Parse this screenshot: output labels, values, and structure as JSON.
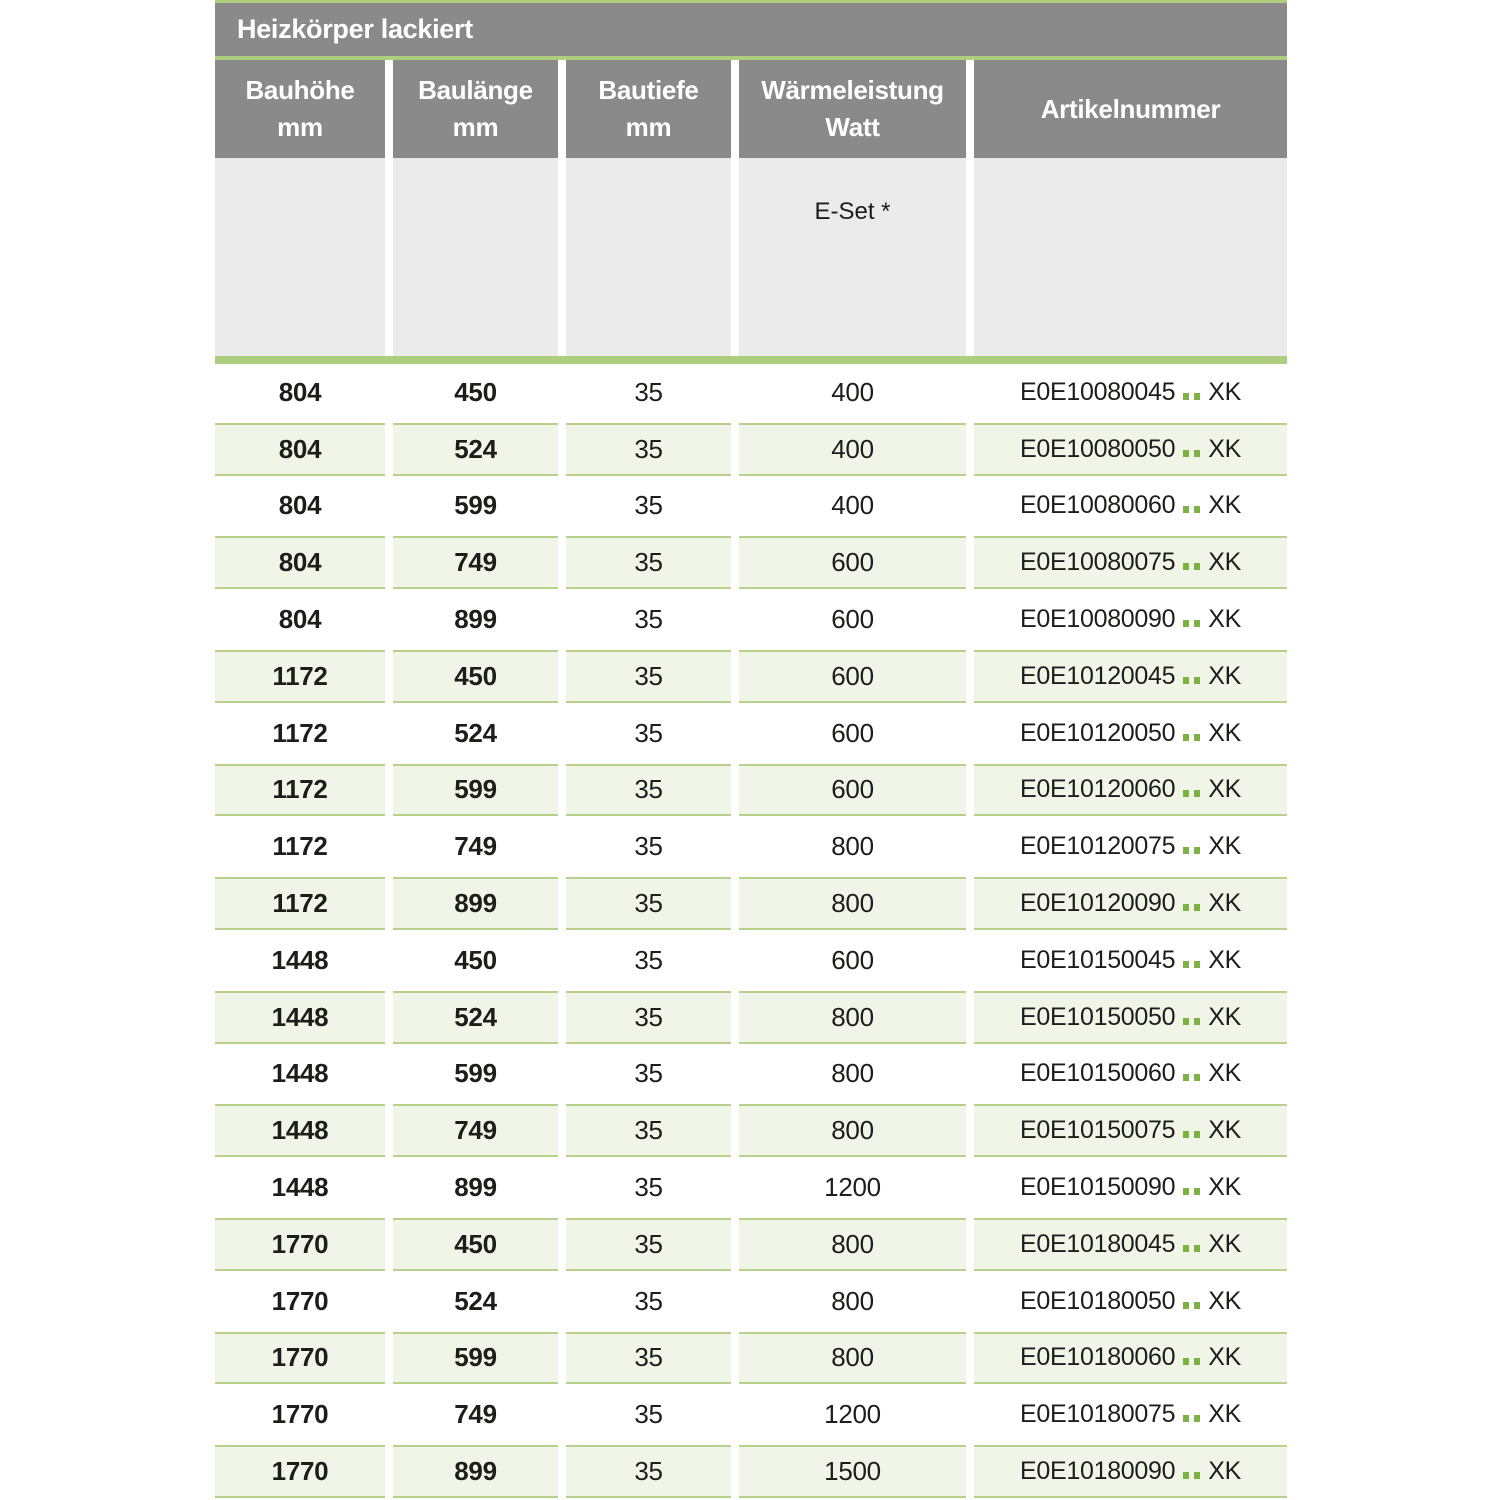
{
  "table": {
    "title": "Heizkörper lackiert",
    "columns": [
      {
        "label_line1": "Bauhöhe",
        "label_line2": "mm"
      },
      {
        "label_line1": "Baulänge",
        "label_line2": "mm"
      },
      {
        "label_line1": "Bautiefe",
        "label_line2": "mm"
      },
      {
        "label_line1": "Wärmeleistung",
        "label_line2": "Watt"
      },
      {
        "label_line1": "Artikelnummer",
        "label_line2": ""
      }
    ],
    "subheader": {
      "eset_label": "E-Set *"
    },
    "artikel_wildcard": "..",
    "rows": [
      {
        "bauhoehe": "804",
        "baulaenge": "450",
        "bautiefe": "35",
        "waermeleistung": "400",
        "artikel_prefix": "E0E10080045",
        "artikel_suffix": "XK"
      },
      {
        "bauhoehe": "804",
        "baulaenge": "524",
        "bautiefe": "35",
        "waermeleistung": "400",
        "artikel_prefix": "E0E10080050",
        "artikel_suffix": "XK"
      },
      {
        "bauhoehe": "804",
        "baulaenge": "599",
        "bautiefe": "35",
        "waermeleistung": "400",
        "artikel_prefix": "E0E10080060",
        "artikel_suffix": "XK"
      },
      {
        "bauhoehe": "804",
        "baulaenge": "749",
        "bautiefe": "35",
        "waermeleistung": "600",
        "artikel_prefix": "E0E10080075",
        "artikel_suffix": "XK"
      },
      {
        "bauhoehe": "804",
        "baulaenge": "899",
        "bautiefe": "35",
        "waermeleistung": "600",
        "artikel_prefix": "E0E10080090",
        "artikel_suffix": "XK"
      },
      {
        "bauhoehe": "1172",
        "baulaenge": "450",
        "bautiefe": "35",
        "waermeleistung": "600",
        "artikel_prefix": "E0E10120045",
        "artikel_suffix": "XK"
      },
      {
        "bauhoehe": "1172",
        "baulaenge": "524",
        "bautiefe": "35",
        "waermeleistung": "600",
        "artikel_prefix": "E0E10120050",
        "artikel_suffix": "XK"
      },
      {
        "bauhoehe": "1172",
        "baulaenge": "599",
        "bautiefe": "35",
        "waermeleistung": "600",
        "artikel_prefix": "E0E10120060",
        "artikel_suffix": "XK"
      },
      {
        "bauhoehe": "1172",
        "baulaenge": "749",
        "bautiefe": "35",
        "waermeleistung": "800",
        "artikel_prefix": "E0E10120075",
        "artikel_suffix": "XK"
      },
      {
        "bauhoehe": "1172",
        "baulaenge": "899",
        "bautiefe": "35",
        "waermeleistung": "800",
        "artikel_prefix": "E0E10120090",
        "artikel_suffix": "XK"
      },
      {
        "bauhoehe": "1448",
        "baulaenge": "450",
        "bautiefe": "35",
        "waermeleistung": "600",
        "artikel_prefix": "E0E10150045",
        "artikel_suffix": "XK"
      },
      {
        "bauhoehe": "1448",
        "baulaenge": "524",
        "bautiefe": "35",
        "waermeleistung": "800",
        "artikel_prefix": "E0E10150050",
        "artikel_suffix": "XK"
      },
      {
        "bauhoehe": "1448",
        "baulaenge": "599",
        "bautiefe": "35",
        "waermeleistung": "800",
        "artikel_prefix": "E0E10150060",
        "artikel_suffix": "XK"
      },
      {
        "bauhoehe": "1448",
        "baulaenge": "749",
        "bautiefe": "35",
        "waermeleistung": "800",
        "artikel_prefix": "E0E10150075",
        "artikel_suffix": "XK"
      },
      {
        "bauhoehe": "1448",
        "baulaenge": "899",
        "bautiefe": "35",
        "waermeleistung": "1200",
        "artikel_prefix": "E0E10150090",
        "artikel_suffix": "XK"
      },
      {
        "bauhoehe": "1770",
        "baulaenge": "450",
        "bautiefe": "35",
        "waermeleistung": "800",
        "artikel_prefix": "E0E10180045",
        "artikel_suffix": "XK"
      },
      {
        "bauhoehe": "1770",
        "baulaenge": "524",
        "bautiefe": "35",
        "waermeleistung": "800",
        "artikel_prefix": "E0E10180050",
        "artikel_suffix": "XK"
      },
      {
        "bauhoehe": "1770",
        "baulaenge": "599",
        "bautiefe": "35",
        "waermeleistung": "800",
        "artikel_prefix": "E0E10180060",
        "artikel_suffix": "XK"
      },
      {
        "bauhoehe": "1770",
        "baulaenge": "749",
        "bautiefe": "35",
        "waermeleistung": "1200",
        "artikel_prefix": "E0E10180075",
        "artikel_suffix": "XK"
      },
      {
        "bauhoehe": "1770",
        "baulaenge": "899",
        "bautiefe": "35",
        "waermeleistung": "1500",
        "artikel_prefix": "E0E10180090",
        "artikel_suffix": "XK"
      }
    ]
  },
  "colors": {
    "header_gray": "#8a8a8a",
    "subheader_gray": "#ebebeb",
    "accent_green": "#aecd7f",
    "row_green_bg": "#f1f5e8",
    "row_green_border": "#b7d18c",
    "dot_green": "#7db243",
    "text_dark": "#1d1d1b",
    "header_text": "#ffffff"
  }
}
